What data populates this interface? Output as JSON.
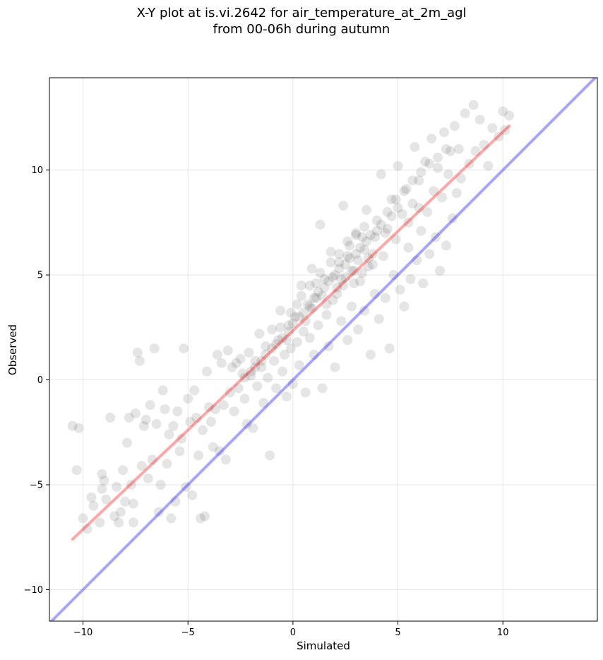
{
  "chart_data": {
    "type": "scatter",
    "title_lines": [
      "X-Y plot at is.vi.2642 for air_temperature_at_2m_agl",
      "from 00-06h during autumn"
    ],
    "xlabel": "Simulated",
    "ylabel": "Observed",
    "xlim": [
      -11.6,
      14.5
    ],
    "ylim": [
      -11.5,
      14.4
    ],
    "xticks": [
      -10,
      -5,
      0,
      5,
      10
    ],
    "xtick_labels": [
      "−10",
      "−5",
      "0",
      "5",
      "10"
    ],
    "yticks": [
      -10,
      -5,
      0,
      5,
      10
    ],
    "ytick_labels": [
      "−10",
      "−5",
      "0",
      "5",
      "10"
    ],
    "grid": true,
    "point_color": "#000000",
    "point_opacity": 0.1,
    "identity_line": {
      "color": "#0000ff",
      "x": [
        -11.6,
        14.5
      ],
      "y": [
        -11.6,
        14.5
      ]
    },
    "fit_line": {
      "color": "#ff0000",
      "x": [
        -10.5,
        10.3
      ],
      "y": [
        -7.6,
        12.1
      ]
    },
    "points": [
      [
        -10.5,
        -2.2
      ],
      [
        -10.2,
        -2.3
      ],
      [
        -10.3,
        -4.3
      ],
      [
        -10.0,
        -6.6
      ],
      [
        -9.8,
        -7.1
      ],
      [
        -9.6,
        -5.6
      ],
      [
        -9.5,
        -6.0
      ],
      [
        -9.2,
        -6.8
      ],
      [
        -9.1,
        -5.2
      ],
      [
        -9.0,
        -4.8
      ],
      [
        -9.1,
        -4.5
      ],
      [
        -8.9,
        -5.7
      ],
      [
        -8.7,
        -1.8
      ],
      [
        -8.5,
        -6.5
      ],
      [
        -8.4,
        -5.1
      ],
      [
        -8.3,
        -6.8
      ],
      [
        -8.2,
        -6.3
      ],
      [
        -8.1,
        -4.3
      ],
      [
        -8.0,
        -5.8
      ],
      [
        -7.9,
        -3.0
      ],
      [
        -7.8,
        -1.8
      ],
      [
        -7.7,
        -5.0
      ],
      [
        -7.6,
        -5.9
      ],
      [
        -7.6,
        -6.8
      ],
      [
        -7.5,
        -1.6
      ],
      [
        -7.4,
        1.3
      ],
      [
        -7.3,
        0.9
      ],
      [
        -7.2,
        -4.1
      ],
      [
        -7.1,
        -2.2
      ],
      [
        -7.0,
        -1.9
      ],
      [
        -6.9,
        -4.7
      ],
      [
        -6.8,
        -1.2
      ],
      [
        -6.7,
        -3.8
      ],
      [
        -6.6,
        1.5
      ],
      [
        -6.5,
        -2.1
      ],
      [
        -6.4,
        -6.3
      ],
      [
        -6.3,
        -5.0
      ],
      [
        -6.2,
        -0.5
      ],
      [
        -6.1,
        -1.4
      ],
      [
        -6.0,
        -4.0
      ],
      [
        -5.9,
        -2.6
      ],
      [
        -5.8,
        -6.6
      ],
      [
        -5.7,
        -2.2
      ],
      [
        -5.6,
        -5.8
      ],
      [
        -5.5,
        -1.5
      ],
      [
        -5.4,
        -3.4
      ],
      [
        -5.3,
        -2.8
      ],
      [
        -5.2,
        1.5
      ],
      [
        -5.1,
        -5.1
      ],
      [
        -5.0,
        -0.9
      ],
      [
        -4.9,
        -2.0
      ],
      [
        -4.8,
        -5.5
      ],
      [
        -4.7,
        -0.5
      ],
      [
        -4.6,
        -1.8
      ],
      [
        -4.5,
        -3.6
      ],
      [
        -4.4,
        -6.6
      ],
      [
        -4.3,
        -2.4
      ],
      [
        -4.2,
        -6.5
      ],
      [
        -4.1,
        0.4
      ],
      [
        -4.0,
        -1.3
      ],
      [
        -3.9,
        -2.0
      ],
      [
        -3.8,
        -3.2
      ],
      [
        -3.7,
        -1.4
      ],
      [
        -3.6,
        1.2
      ],
      [
        -3.5,
        -3.4
      ],
      [
        -3.4,
        0.8
      ],
      [
        -3.3,
        -1.2
      ],
      [
        -3.2,
        -3.8
      ],
      [
        -3.1,
        1.4
      ],
      [
        -3.0,
        -0.6
      ],
      [
        -2.9,
        0.6
      ],
      [
        -2.8,
        -1.5
      ],
      [
        -2.7,
        0.8
      ],
      [
        -2.6,
        -0.4
      ],
      [
        -2.5,
        1.0
      ],
      [
        -2.4,
        0.3
      ],
      [
        -2.3,
        -0.9
      ],
      [
        -2.2,
        -2.1
      ],
      [
        -2.1,
        1.3
      ],
      [
        -2.0,
        0.2
      ],
      [
        -1.9,
        -2.3
      ],
      [
        -1.8,
        0.9
      ],
      [
        -1.7,
        -0.3
      ],
      [
        -1.6,
        2.2
      ],
      [
        -1.5,
        0.6
      ],
      [
        -1.4,
        -1.1
      ],
      [
        -1.3,
        1.6
      ],
      [
        -1.2,
        0.1
      ],
      [
        -1.1,
        -3.6
      ],
      [
        -1.0,
        2.4
      ],
      [
        -0.9,
        0.9
      ],
      [
        -0.8,
        -0.4
      ],
      [
        -0.7,
        1.9
      ],
      [
        -0.6,
        3.3
      ],
      [
        -0.5,
        0.4
      ],
      [
        -0.4,
        1.2
      ],
      [
        -0.3,
        -0.8
      ],
      [
        -0.2,
        2.6
      ],
      [
        -0.1,
        1.5
      ],
      [
        0.0,
        -0.2
      ],
      [
        0.1,
        3.0
      ],
      [
        0.2,
        1.8
      ],
      [
        0.3,
        0.7
      ],
      [
        0.4,
        4.5
      ],
      [
        0.5,
        2.3
      ],
      [
        0.6,
        -0.6
      ],
      [
        0.7,
        3.6
      ],
      [
        0.8,
        2.0
      ],
      [
        0.9,
        5.3
      ],
      [
        1.0,
        1.2
      ],
      [
        1.1,
        3.9
      ],
      [
        1.2,
        2.6
      ],
      [
        1.3,
        7.4
      ],
      [
        1.4,
        -0.4
      ],
      [
        1.5,
        4.8
      ],
      [
        1.6,
        3.1
      ],
      [
        1.7,
        1.6
      ],
      [
        1.8,
        6.1
      ],
      [
        1.9,
        3.8
      ],
      [
        2.0,
        0.6
      ],
      [
        2.1,
        4.4
      ],
      [
        2.2,
        5.6
      ],
      [
        2.3,
        2.8
      ],
      [
        2.4,
        8.3
      ],
      [
        2.5,
        4.9
      ],
      [
        2.6,
        1.9
      ],
      [
        2.7,
        6.4
      ],
      [
        2.8,
        3.5
      ],
      [
        2.9,
        5.2
      ],
      [
        3.0,
        7.0
      ],
      [
        3.1,
        2.4
      ],
      [
        3.2,
        4.7
      ],
      [
        3.3,
        6.8
      ],
      [
        3.4,
        3.3
      ],
      [
        3.5,
        8.1
      ],
      [
        3.6,
        5.4
      ],
      [
        3.7,
        1.2
      ],
      [
        3.8,
        6.0
      ],
      [
        3.9,
        4.1
      ],
      [
        4.0,
        7.6
      ],
      [
        4.1,
        2.9
      ],
      [
        4.2,
        9.8
      ],
      [
        4.3,
        5.9
      ],
      [
        4.4,
        3.9
      ],
      [
        4.5,
        7.2
      ],
      [
        4.6,
        1.5
      ],
      [
        4.7,
        8.6
      ],
      [
        4.8,
        5.0
      ],
      [
        4.9,
        6.7
      ],
      [
        5.0,
        10.2
      ],
      [
        5.1,
        4.3
      ],
      [
        5.2,
        7.9
      ],
      [
        5.3,
        3.5
      ],
      [
        5.4,
        9.1
      ],
      [
        5.5,
        6.3
      ],
      [
        5.6,
        4.8
      ],
      [
        5.7,
        8.4
      ],
      [
        5.8,
        11.1
      ],
      [
        5.9,
        5.7
      ],
      [
        6.0,
        9.5
      ],
      [
        6.1,
        7.1
      ],
      [
        6.2,
        4.6
      ],
      [
        6.3,
        10.4
      ],
      [
        6.4,
        8.0
      ],
      [
        6.5,
        6.0
      ],
      [
        6.6,
        11.5
      ],
      [
        6.7,
        9.0
      ],
      [
        6.8,
        6.8
      ],
      [
        6.9,
        10.1
      ],
      [
        7.0,
        5.2
      ],
      [
        7.1,
        8.7
      ],
      [
        7.2,
        11.8
      ],
      [
        7.3,
        6.4
      ],
      [
        7.4,
        9.8
      ],
      [
        7.5,
        10.9
      ],
      [
        7.6,
        7.7
      ],
      [
        7.7,
        12.1
      ],
      [
        7.8,
        8.9
      ],
      [
        7.9,
        11.0
      ],
      [
        8.0,
        9.6
      ],
      [
        8.2,
        12.7
      ],
      [
        8.4,
        10.3
      ],
      [
        8.6,
        13.1
      ],
      [
        8.7,
        10.9
      ],
      [
        8.9,
        12.4
      ],
      [
        9.1,
        11.2
      ],
      [
        9.3,
        10.2
      ],
      [
        9.5,
        12.0
      ],
      [
        9.8,
        11.6
      ],
      [
        10.0,
        12.8
      ],
      [
        10.1,
        11.9
      ],
      [
        10.3,
        12.6
      ],
      [
        -0.5,
        2.0
      ],
      [
        -0.2,
        2.3
      ],
      [
        0.0,
        2.7
      ],
      [
        0.3,
        3.0
      ],
      [
        0.5,
        3.2
      ],
      [
        0.8,
        3.5
      ],
      [
        1.0,
        3.9
      ],
      [
        1.2,
        4.2
      ],
      [
        1.5,
        4.4
      ],
      [
        1.7,
        4.7
      ],
      [
        2.0,
        5.0
      ],
      [
        2.2,
        5.3
      ],
      [
        2.5,
        5.5
      ],
      [
        2.7,
        5.8
      ],
      [
        3.0,
        6.0
      ],
      [
        3.2,
        6.3
      ],
      [
        3.5,
        6.6
      ],
      [
        3.7,
        6.9
      ],
      [
        4.0,
        7.1
      ],
      [
        4.2,
        7.4
      ],
      [
        -0.8,
        1.7
      ],
      [
        -1.0,
        1.5
      ],
      [
        -1.3,
        1.2
      ],
      [
        -1.5,
        0.9
      ],
      [
        -1.8,
        0.6
      ],
      [
        -2.0,
        0.4
      ],
      [
        -2.3,
        0.1
      ],
      [
        1.1,
        4.6
      ],
      [
        1.4,
        4.0
      ],
      [
        1.9,
        4.9
      ],
      [
        2.3,
        4.8
      ],
      [
        2.6,
        5.9
      ],
      [
        2.8,
        5.2
      ],
      [
        3.1,
        5.7
      ],
      [
        3.4,
        6.2
      ],
      [
        3.6,
        5.8
      ],
      [
        3.9,
        6.8
      ],
      [
        4.4,
        7.0
      ],
      [
        4.7,
        7.8
      ],
      [
        5.0,
        8.2
      ],
      [
        0.6,
        2.8
      ],
      [
        0.9,
        3.4
      ],
      [
        0.2,
        3.6
      ],
      [
        -0.3,
        1.9
      ],
      [
        1.6,
        3.6
      ],
      [
        2.1,
        4.1
      ],
      [
        2.4,
        4.5
      ],
      [
        2.9,
        4.6
      ],
      [
        3.3,
        5.1
      ],
      [
        3.8,
        5.5
      ],
      [
        1.8,
        5.6
      ],
      [
        2.2,
        6.0
      ],
      [
        2.6,
        6.6
      ],
      [
        3.0,
        6.9
      ],
      [
        3.4,
        7.3
      ],
      [
        1.3,
        5.1
      ],
      [
        0.8,
        4.5
      ],
      [
        0.4,
        4.0
      ],
      [
        -0.1,
        3.2
      ],
      [
        -0.6,
        2.5
      ],
      [
        4.5,
        8.0
      ],
      [
        4.9,
        8.6
      ],
      [
        5.3,
        9.0
      ],
      [
        5.7,
        9.5
      ],
      [
        6.1,
        9.9
      ],
      [
        6.5,
        10.3
      ],
      [
        6.9,
        10.6
      ],
      [
        7.3,
        11.0
      ],
      [
        5.5,
        7.5
      ],
      [
        6.0,
        8.2
      ]
    ]
  }
}
